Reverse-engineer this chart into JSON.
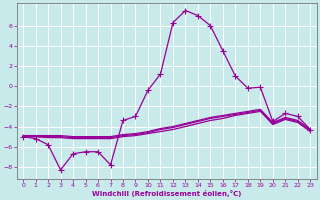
{
  "xlabel": "Windchill (Refroidissement éolien,°C)",
  "bg_color": "#c8eaea",
  "line_color": "#990099",
  "grid_color": "#ffffff",
  "xlim": [
    -0.5,
    23.5
  ],
  "ylim": [
    -9.2,
    8.2
  ],
  "xticks": [
    0,
    1,
    2,
    3,
    4,
    5,
    6,
    7,
    8,
    9,
    10,
    11,
    12,
    13,
    14,
    15,
    16,
    17,
    18,
    19,
    20,
    21,
    22,
    23
  ],
  "yticks": [
    -8,
    -6,
    -4,
    -2,
    0,
    2,
    4,
    6
  ],
  "series": [
    {
      "x": [
        0,
        1,
        2,
        3,
        4,
        5,
        6,
        7,
        8,
        9,
        10,
        11,
        12,
        13,
        14,
        15,
        16,
        17,
        18,
        19,
        20,
        21,
        22,
        23
      ],
      "y": [
        -5.0,
        -5.2,
        -5.8,
        -8.3,
        -6.7,
        -6.5,
        -6.5,
        -7.8,
        -3.4,
        -3.0,
        -0.4,
        1.2,
        6.3,
        7.5,
        7.0,
        6.0,
        3.5,
        1.0,
        -0.2,
        -0.1,
        -3.5,
        -2.7,
        -3.0,
        -4.3
      ],
      "marker": "+",
      "lw": 0.9,
      "ms": 4
    },
    {
      "x": [
        0,
        1,
        2,
        3,
        4,
        5,
        6,
        7,
        8,
        9,
        10,
        11,
        12,
        13,
        14,
        15,
        16,
        17,
        18,
        19,
        20,
        21,
        22,
        23
      ],
      "y": [
        -5.0,
        -5.0,
        -5.1,
        -5.1,
        -5.2,
        -5.2,
        -5.2,
        -5.2,
        -5.0,
        -4.9,
        -4.7,
        -4.5,
        -4.3,
        -4.0,
        -3.7,
        -3.4,
        -3.2,
        -2.9,
        -2.7,
        -2.5,
        -3.8,
        -3.3,
        -3.6,
        -4.5
      ],
      "marker": null,
      "lw": 0.9,
      "ms": 0
    },
    {
      "x": [
        0,
        1,
        2,
        3,
        4,
        5,
        6,
        7,
        8,
        9,
        10,
        11,
        12,
        13,
        14,
        15,
        16,
        17,
        18,
        19,
        20,
        21,
        22,
        23
      ],
      "y": [
        -5.0,
        -5.0,
        -5.0,
        -5.0,
        -5.1,
        -5.1,
        -5.1,
        -5.1,
        -4.9,
        -4.8,
        -4.6,
        -4.3,
        -4.1,
        -3.8,
        -3.5,
        -3.2,
        -3.0,
        -2.8,
        -2.6,
        -2.4,
        -3.7,
        -3.2,
        -3.5,
        -4.4
      ],
      "marker": null,
      "lw": 0.9,
      "ms": 0
    },
    {
      "x": [
        0,
        1,
        2,
        3,
        4,
        5,
        6,
        7,
        8,
        9,
        10,
        11,
        12,
        13,
        14,
        15,
        16,
        17,
        18,
        19,
        20,
        21,
        22,
        23
      ],
      "y": [
        -4.9,
        -4.9,
        -4.9,
        -4.9,
        -5.0,
        -5.0,
        -5.0,
        -5.0,
        -4.8,
        -4.7,
        -4.5,
        -4.2,
        -4.0,
        -3.7,
        -3.4,
        -3.1,
        -2.9,
        -2.7,
        -2.5,
        -2.3,
        -3.6,
        -3.1,
        -3.4,
        -4.3
      ],
      "marker": null,
      "lw": 0.9,
      "ms": 0
    }
  ]
}
